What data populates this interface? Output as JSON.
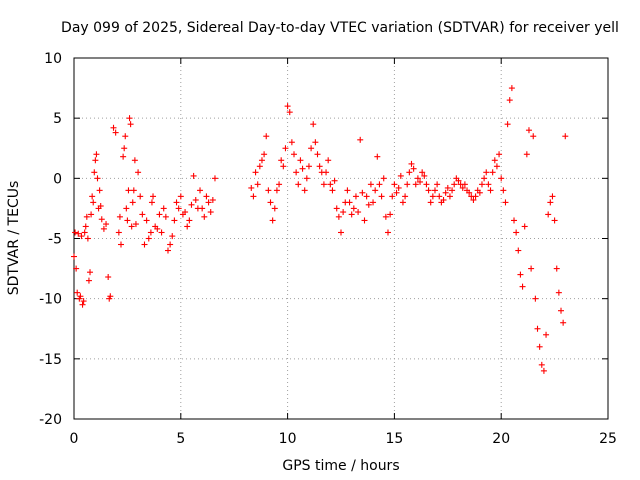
{
  "chart_data": {
    "type": "scatter",
    "title": "Day 099 of 2025, Sidereal Day-to-day VTEC variation (SDTVAR) for receiver yell",
    "xlabel": "GPS time / hours",
    "ylabel": "SDTVAR / TECUs",
    "xlim": [
      0,
      25
    ],
    "ylim": [
      -20,
      10
    ],
    "xticks": [
      0,
      5,
      10,
      15,
      20,
      25
    ],
    "yticks": [
      -20,
      -15,
      -10,
      -5,
      0,
      5,
      10
    ],
    "xtick_labels": [
      "0",
      "5",
      "10",
      "15",
      "20",
      "25"
    ],
    "ytick_labels": [
      "-20",
      "-15",
      "-10",
      "-5",
      "0",
      "5",
      "10"
    ],
    "grid": true,
    "marker": "plus",
    "color": "#ff0000",
    "series": [
      {
        "name": "SDTVAR",
        "points": [
          [
            0.0,
            -6.5
          ],
          [
            0.05,
            -4.5
          ],
          [
            0.1,
            -7.5
          ],
          [
            0.15,
            -9.5
          ],
          [
            0.2,
            -4.6
          ],
          [
            0.25,
            -10.0
          ],
          [
            0.3,
            -9.8
          ],
          [
            0.35,
            -4.8
          ],
          [
            0.4,
            -10.5
          ],
          [
            0.45,
            -10.2
          ],
          [
            0.5,
            -4.5
          ],
          [
            0.55,
            -4.0
          ],
          [
            0.6,
            -3.2
          ],
          [
            0.65,
            -5.0
          ],
          [
            0.7,
            -8.5
          ],
          [
            0.75,
            -7.8
          ],
          [
            0.8,
            -3.0
          ],
          [
            0.85,
            -1.5
          ],
          [
            0.9,
            -2.0
          ],
          [
            0.95,
            0.5
          ],
          [
            1.0,
            1.5
          ],
          [
            1.05,
            2.0
          ],
          [
            1.1,
            0.0
          ],
          [
            1.15,
            -2.5
          ],
          [
            1.2,
            -1.0
          ],
          [
            1.25,
            -2.3
          ],
          [
            1.3,
            -3.4
          ],
          [
            1.4,
            -4.2
          ],
          [
            1.5,
            -3.8
          ],
          [
            1.6,
            -8.2
          ],
          [
            1.65,
            -10.0
          ],
          [
            1.7,
            -9.8
          ],
          [
            1.85,
            4.2
          ],
          [
            1.95,
            3.8
          ],
          [
            2.1,
            -4.5
          ],
          [
            2.15,
            -3.2
          ],
          [
            2.2,
            -5.5
          ],
          [
            2.3,
            1.8
          ],
          [
            2.35,
            2.5
          ],
          [
            2.4,
            3.5
          ],
          [
            2.45,
            -2.5
          ],
          [
            2.5,
            -3.5
          ],
          [
            2.55,
            -1.0
          ],
          [
            2.6,
            5.0
          ],
          [
            2.65,
            4.5
          ],
          [
            2.7,
            -4.0
          ],
          [
            2.75,
            -2.0
          ],
          [
            2.8,
            -1.0
          ],
          [
            2.85,
            1.5
          ],
          [
            2.9,
            -3.8
          ],
          [
            3.0,
            0.5
          ],
          [
            3.1,
            -1.5
          ],
          [
            3.2,
            -3.0
          ],
          [
            3.3,
            -5.5
          ],
          [
            3.4,
            -3.5
          ],
          [
            3.5,
            -5.0
          ],
          [
            3.6,
            -4.5
          ],
          [
            3.65,
            -2.0
          ],
          [
            3.7,
            -1.5
          ],
          [
            3.8,
            -4.0
          ],
          [
            3.9,
            -4.2
          ],
          [
            4.0,
            -3.0
          ],
          [
            4.1,
            -4.5
          ],
          [
            4.2,
            -2.5
          ],
          [
            4.3,
            -3.2
          ],
          [
            4.4,
            -6.0
          ],
          [
            4.5,
            -5.5
          ],
          [
            4.6,
            -4.8
          ],
          [
            4.7,
            -3.5
          ],
          [
            4.8,
            -2.0
          ],
          [
            4.9,
            -2.5
          ],
          [
            5.0,
            -1.5
          ],
          [
            5.1,
            -3.0
          ],
          [
            5.2,
            -2.8
          ],
          [
            5.3,
            -4.0
          ],
          [
            5.4,
            -3.5
          ],
          [
            5.5,
            -2.2
          ],
          [
            5.6,
            0.2
          ],
          [
            5.7,
            -1.8
          ],
          [
            5.8,
            -2.5
          ],
          [
            5.9,
            -1.0
          ],
          [
            6.0,
            -2.5
          ],
          [
            6.1,
            -3.2
          ],
          [
            6.2,
            -1.5
          ],
          [
            6.3,
            -2.0
          ],
          [
            6.4,
            -2.8
          ],
          [
            6.5,
            -1.8
          ],
          [
            6.6,
            0.0
          ],
          [
            8.3,
            -0.8
          ],
          [
            8.4,
            -1.5
          ],
          [
            8.5,
            0.5
          ],
          [
            8.6,
            -0.5
          ],
          [
            8.7,
            1.0
          ],
          [
            8.8,
            1.5
          ],
          [
            8.9,
            2.0
          ],
          [
            9.0,
            3.5
          ],
          [
            9.1,
            -1.0
          ],
          [
            9.2,
            -2.0
          ],
          [
            9.3,
            -3.5
          ],
          [
            9.4,
            -2.5
          ],
          [
            9.5,
            -1.0
          ],
          [
            9.6,
            -0.5
          ],
          [
            9.7,
            1.5
          ],
          [
            9.8,
            1.0
          ],
          [
            9.9,
            2.5
          ],
          [
            10.0,
            6.0
          ],
          [
            10.1,
            5.5
          ],
          [
            10.2,
            3.0
          ],
          [
            10.3,
            2.0
          ],
          [
            10.4,
            0.5
          ],
          [
            10.5,
            -0.5
          ],
          [
            10.6,
            1.5
          ],
          [
            10.7,
            0.8
          ],
          [
            10.8,
            -1.0
          ],
          [
            10.9,
            0.0
          ],
          [
            11.0,
            1.0
          ],
          [
            11.1,
            2.5
          ],
          [
            11.2,
            4.5
          ],
          [
            11.3,
            3.0
          ],
          [
            11.4,
            2.0
          ],
          [
            11.5,
            1.0
          ],
          [
            11.6,
            0.5
          ],
          [
            11.7,
            -0.5
          ],
          [
            11.8,
            0.5
          ],
          [
            11.9,
            1.5
          ],
          [
            12.0,
            -0.5
          ],
          [
            12.1,
            -1.0
          ],
          [
            12.2,
            -0.2
          ],
          [
            12.3,
            -2.5
          ],
          [
            12.4,
            -3.2
          ],
          [
            12.5,
            -4.5
          ],
          [
            12.6,
            -2.8
          ],
          [
            12.7,
            -2.0
          ],
          [
            12.8,
            -1.0
          ],
          [
            12.9,
            -2.0
          ],
          [
            13.0,
            -3.0
          ],
          [
            13.1,
            -2.5
          ],
          [
            13.2,
            -1.5
          ],
          [
            13.3,
            -2.8
          ],
          [
            13.4,
            3.2
          ],
          [
            13.5,
            -1.2
          ],
          [
            13.6,
            -3.5
          ],
          [
            13.7,
            -1.5
          ],
          [
            13.8,
            -2.2
          ],
          [
            13.9,
            -0.5
          ],
          [
            14.0,
            -2.0
          ],
          [
            14.1,
            -1.0
          ],
          [
            14.2,
            1.8
          ],
          [
            14.3,
            -0.5
          ],
          [
            14.4,
            -1.5
          ],
          [
            14.5,
            0.0
          ],
          [
            14.6,
            -3.2
          ],
          [
            14.7,
            -4.5
          ],
          [
            14.8,
            -3.0
          ],
          [
            14.9,
            -1.5
          ],
          [
            15.0,
            -0.5
          ],
          [
            15.1,
            -1.2
          ],
          [
            15.2,
            -0.8
          ],
          [
            15.3,
            0.2
          ],
          [
            15.4,
            -2.0
          ],
          [
            15.5,
            -1.5
          ],
          [
            15.6,
            -0.5
          ],
          [
            15.7,
            0.5
          ],
          [
            15.8,
            1.2
          ],
          [
            15.9,
            0.8
          ],
          [
            16.0,
            -0.5
          ],
          [
            16.1,
            0.0
          ],
          [
            16.2,
            -0.3
          ],
          [
            16.3,
            0.5
          ],
          [
            16.4,
            0.2
          ],
          [
            16.5,
            -0.5
          ],
          [
            16.6,
            -1.0
          ],
          [
            16.7,
            -2.0
          ],
          [
            16.8,
            -1.5
          ],
          [
            16.9,
            -1.0
          ],
          [
            17.0,
            -0.5
          ],
          [
            17.1,
            -1.5
          ],
          [
            17.2,
            -2.0
          ],
          [
            17.3,
            -1.8
          ],
          [
            17.4,
            -1.2
          ],
          [
            17.5,
            -0.8
          ],
          [
            17.6,
            -1.5
          ],
          [
            17.7,
            -1.0
          ],
          [
            17.8,
            -0.5
          ],
          [
            17.9,
            0.0
          ],
          [
            18.0,
            -0.2
          ],
          [
            18.1,
            -0.5
          ],
          [
            18.2,
            -0.8
          ],
          [
            18.3,
            -0.5
          ],
          [
            18.4,
            -1.0
          ],
          [
            18.5,
            -1.2
          ],
          [
            18.6,
            -1.5
          ],
          [
            18.7,
            -1.8
          ],
          [
            18.8,
            -1.5
          ],
          [
            18.9,
            -1.0
          ],
          [
            19.0,
            -1.2
          ],
          [
            19.1,
            -0.5
          ],
          [
            19.2,
            0.0
          ],
          [
            19.3,
            0.5
          ],
          [
            19.4,
            -0.5
          ],
          [
            19.5,
            -1.0
          ],
          [
            19.6,
            0.5
          ],
          [
            19.7,
            1.5
          ],
          [
            19.8,
            1.0
          ],
          [
            19.9,
            2.0
          ],
          [
            20.0,
            0.0
          ],
          [
            20.1,
            -1.0
          ],
          [
            20.2,
            -2.0
          ],
          [
            20.3,
            4.5
          ],
          [
            20.4,
            6.5
          ],
          [
            20.5,
            7.5
          ],
          [
            20.6,
            -3.5
          ],
          [
            20.7,
            -4.5
          ],
          [
            20.8,
            -6.0
          ],
          [
            20.9,
            -8.0
          ],
          [
            21.0,
            -9.0
          ],
          [
            21.1,
            -4.0
          ],
          [
            21.2,
            2.0
          ],
          [
            21.3,
            4.0
          ],
          [
            21.4,
            -7.5
          ],
          [
            21.5,
            3.5
          ],
          [
            21.6,
            -10.0
          ],
          [
            21.7,
            -12.5
          ],
          [
            21.8,
            -14.0
          ],
          [
            21.9,
            -15.5
          ],
          [
            22.0,
            -16.0
          ],
          [
            22.1,
            -13.0
          ],
          [
            22.2,
            -3.0
          ],
          [
            22.3,
            -2.0
          ],
          [
            22.4,
            -1.5
          ],
          [
            22.5,
            -3.5
          ],
          [
            22.6,
            -7.5
          ],
          [
            22.7,
            -9.5
          ],
          [
            22.8,
            -11.0
          ],
          [
            22.9,
            -12.0
          ],
          [
            23.0,
            3.5
          ]
        ]
      }
    ]
  }
}
